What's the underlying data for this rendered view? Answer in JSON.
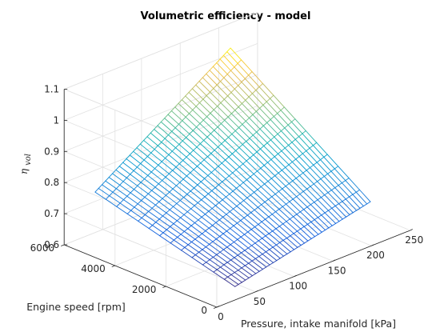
{
  "chart_data": {
    "type": "surface",
    "title": "Volumetric efficiency - model",
    "xlabel": "Pressure, intake manifold [kPa]",
    "ylabel": "Engine speed [rpm]",
    "zlabel_main": "η",
    "zlabel_sub": "vol",
    "xlim": [
      0,
      250
    ],
    "ylim": [
      0,
      6000
    ],
    "zlim": [
      0.6,
      1.1
    ],
    "xticks": [
      0,
      50,
      100,
      150,
      200,
      250
    ],
    "yticks": [
      0,
      2000,
      4000,
      6000
    ],
    "zticks": [
      0.6,
      0.7,
      0.8,
      0.9,
      1.0,
      1.1
    ],
    "ztick_labels": [
      "0.6",
      "0.7",
      "0.8",
      "0.9",
      "1",
      "1.1"
    ],
    "grid": true,
    "colormap": "parula",
    "x_range": [
      40,
      215
    ],
    "y_range": [
      500,
      6000
    ],
    "z_corners": {
      "x40_y500": 0.61,
      "x215_y500": 0.71,
      "x40_y6000": 0.73,
      "x215_y6000": 1.02
    },
    "x_samples": 40,
    "y_samples": 14
  }
}
